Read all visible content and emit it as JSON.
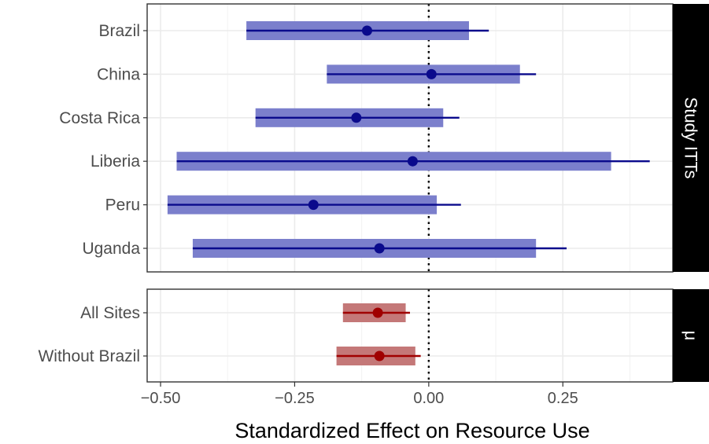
{
  "chart_data": {
    "type": "forest",
    "xlabel": "Standardized Effect on Resource Use",
    "xlim": [
      -0.525,
      0.455
    ],
    "xticks": [
      -0.5,
      -0.25,
      0.0,
      0.25
    ],
    "xtick_labels": [
      "−0.50",
      "−0.25",
      "0.00",
      "0.25"
    ],
    "reference_line": 0,
    "grid": true,
    "panels": [
      {
        "strip": "Study ITTs",
        "color_bar": "#7b7fcc",
        "color_point": "#0a0a8c",
        "rows": [
          {
            "label": "Brazil",
            "estimate": -0.115,
            "bar_low": -0.34,
            "bar_high": 0.075,
            "ci_low": -0.34,
            "ci_high": 0.112
          },
          {
            "label": "China",
            "estimate": 0.005,
            "bar_low": -0.19,
            "bar_high": 0.17,
            "ci_low": -0.19,
            "ci_high": 0.2
          },
          {
            "label": "Costa Rica",
            "estimate": -0.135,
            "bar_low": -0.323,
            "bar_high": 0.027,
            "ci_low": -0.323,
            "ci_high": 0.057
          },
          {
            "label": "Liberia",
            "estimate": -0.03,
            "bar_low": -0.47,
            "bar_high": 0.34,
            "ci_low": -0.47,
            "ci_high": 0.412
          },
          {
            "label": "Peru",
            "estimate": -0.215,
            "bar_low": -0.487,
            "bar_high": 0.015,
            "ci_low": -0.487,
            "ci_high": 0.06
          },
          {
            "label": "Uganda",
            "estimate": -0.092,
            "bar_low": -0.44,
            "bar_high": 0.2,
            "ci_low": -0.44,
            "ci_high": 0.257
          }
        ]
      },
      {
        "strip": "μ",
        "color_bar": "#c47878",
        "color_point": "#a00000",
        "rows": [
          {
            "label": "All Sites",
            "estimate": -0.095,
            "bar_low": -0.16,
            "bar_high": -0.043,
            "ci_low": -0.16,
            "ci_high": -0.035
          },
          {
            "label": "Without Brazil",
            "estimate": -0.092,
            "bar_low": -0.172,
            "bar_high": -0.025,
            "ci_low": -0.172,
            "ci_high": -0.015
          }
        ]
      }
    ]
  }
}
